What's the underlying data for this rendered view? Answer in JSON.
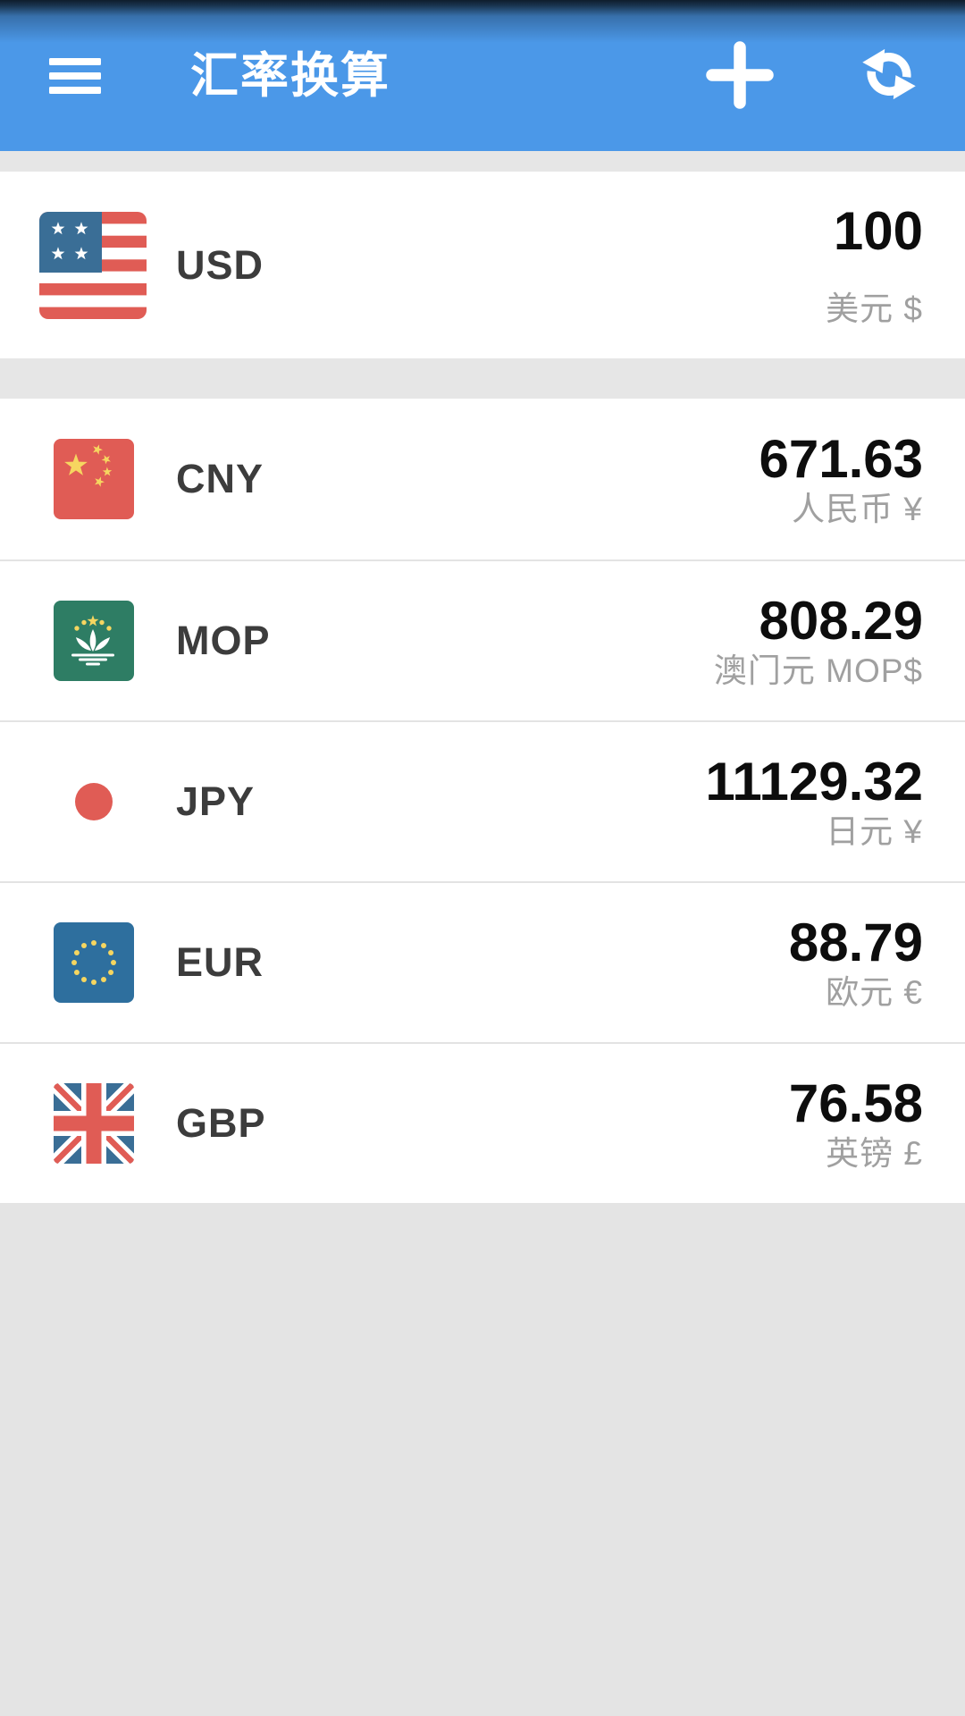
{
  "header": {
    "title": "汇率换算",
    "icons": [
      "hamburger-menu-icon",
      "plus-icon",
      "refresh-sync-icon"
    ]
  },
  "rows": [
    {
      "code": "USD",
      "value": "100",
      "subtitle": "美元 $",
      "flag_icon": "flag-usa-icon",
      "is_base": true
    },
    {
      "code": "CNY",
      "value": "671.63",
      "subtitle": "人民币 ¥",
      "flag_icon": "flag-china-icon",
      "is_base": false
    },
    {
      "code": "MOP",
      "value": "808.29",
      "subtitle": "澳门元 MOP$",
      "flag_icon": "flag-macau-icon",
      "is_base": false
    },
    {
      "code": "JPY",
      "value": "11129.32",
      "subtitle": "日元 ¥",
      "flag_icon": "flag-japan-icon",
      "is_base": false
    },
    {
      "code": "EUR",
      "value": "88.79",
      "subtitle": "欧元 €",
      "flag_icon": "flag-eu-icon",
      "is_base": false
    },
    {
      "code": "GBP",
      "value": "76.58",
      "subtitle": "英镑 £",
      "flag_icon": "flag-uk-icon",
      "is_base": false
    }
  ],
  "colors": {
    "header_blue": "#4b98e8",
    "strip_gray": "#e6e6e6",
    "bottom_gray": "#e4e4e4",
    "separator": "#e3e3e3",
    "code_text": "#3c3c3c",
    "value_text": "#0d0d0d",
    "subtitle_text": "#a0a0a0",
    "flag_red": "#e05c55",
    "flag_yellow": "#f6d660",
    "macau_green": "#2e7d64",
    "eu_blue": "#2e6f9e",
    "uk_blue": "#3a6e96"
  }
}
